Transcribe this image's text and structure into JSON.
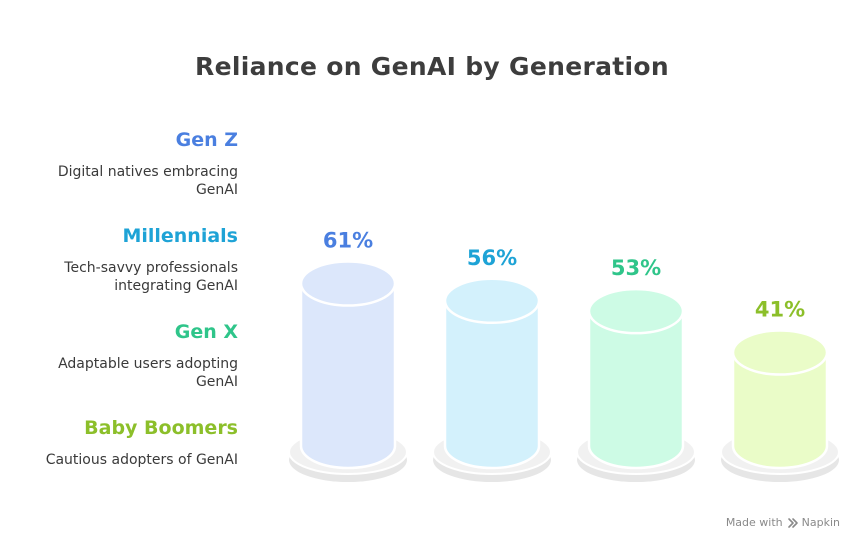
{
  "title": "Reliance on GenAI by Generation",
  "legend": [
    {
      "name": "Gen Z",
      "description": "Digital natives embracing GenAI",
      "color": "#4a7fe0"
    },
    {
      "name": "Millennials",
      "description": "Tech-savvy professionals integrating GenAI",
      "color": "#1ea3d6"
    },
    {
      "name": "Gen X",
      "description": "Adaptable users adopting GenAI",
      "color": "#2fc58a"
    },
    {
      "name": "Baby Boomers",
      "description": "Cautious adopters of GenAI",
      "color": "#8cbf2a"
    }
  ],
  "chart_data": {
    "type": "bar",
    "categories": [
      "Gen Z",
      "Millennials",
      "Gen X",
      "Baby Boomers"
    ],
    "values": [
      61,
      56,
      53,
      41
    ],
    "value_labels": [
      "61%",
      "56%",
      "53%",
      "41%"
    ],
    "unit": "%",
    "fill_colors": [
      "#dce7fb",
      "#d3f1fc",
      "#cdfbe5",
      "#eafcc8"
    ],
    "label_colors": [
      "#4a7fe0",
      "#1ea3d6",
      "#2fc58a",
      "#8cbf2a"
    ],
    "legend_position": "left"
  },
  "watermark": {
    "prefix": "Made with",
    "brand": "Napkin"
  }
}
